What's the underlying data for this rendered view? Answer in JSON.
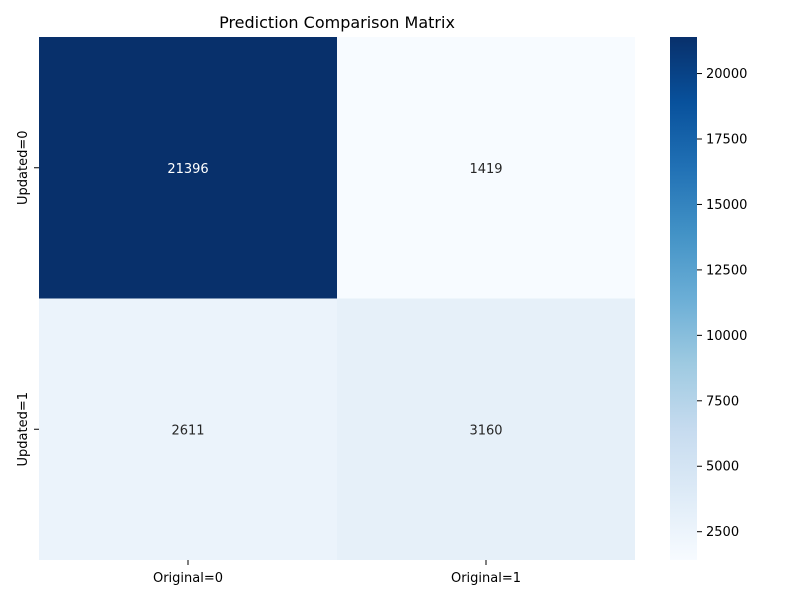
{
  "chart_data": {
    "type": "heatmap",
    "title": "Prediction Comparison Matrix",
    "x_categories": [
      "Original=0",
      "Original=1"
    ],
    "y_categories": [
      "Updated=0",
      "Updated=1"
    ],
    "values": [
      [
        21396,
        1419
      ],
      [
        2611,
        3160
      ]
    ],
    "colormap": "Blues",
    "colorbar": {
      "min": 1419,
      "max": 21396,
      "ticks": [
        2500,
        5000,
        7500,
        10000,
        12500,
        15000,
        17500,
        20000
      ]
    },
    "annotations": true
  }
}
